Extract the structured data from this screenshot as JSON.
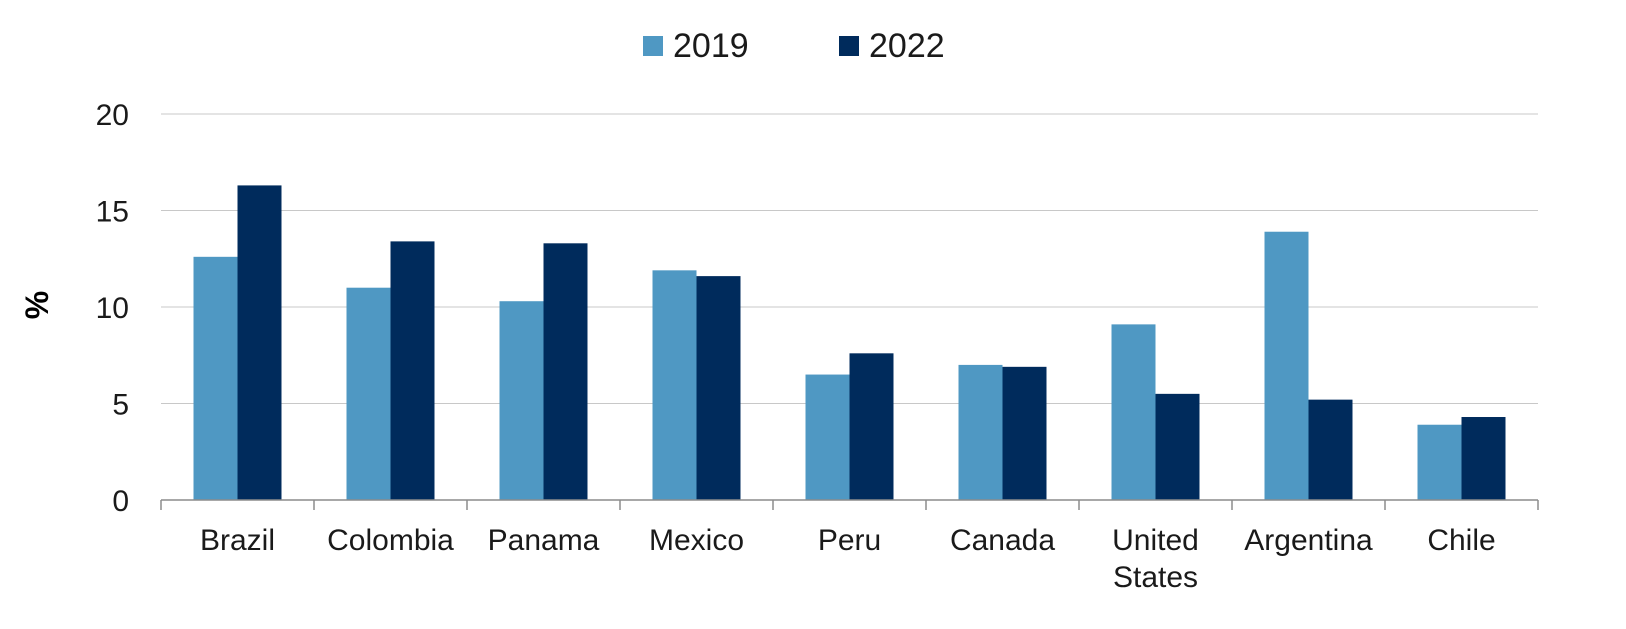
{
  "chart_data": {
    "type": "bar",
    "title": "",
    "xlabel": "",
    "ylabel": "%",
    "ylim": [
      0,
      20
    ],
    "yticks": [
      0,
      5,
      10,
      15,
      20
    ],
    "grid": true,
    "legend_position": "top-center",
    "categories": [
      "Brazil",
      "Colombia",
      "Panama",
      "Mexico",
      "Peru",
      "Canada",
      "United States",
      "Argentina",
      "Chile"
    ],
    "series": [
      {
        "name": "2019",
        "color": "#4f98c3",
        "values": [
          12.6,
          11.0,
          10.3,
          11.9,
          6.5,
          7.0,
          9.1,
          13.9,
          3.9
        ]
      },
      {
        "name": "2022",
        "color": "#002b5c",
        "values": [
          16.3,
          13.4,
          13.3,
          11.6,
          7.6,
          6.9,
          5.5,
          5.2,
          4.3
        ]
      }
    ]
  }
}
